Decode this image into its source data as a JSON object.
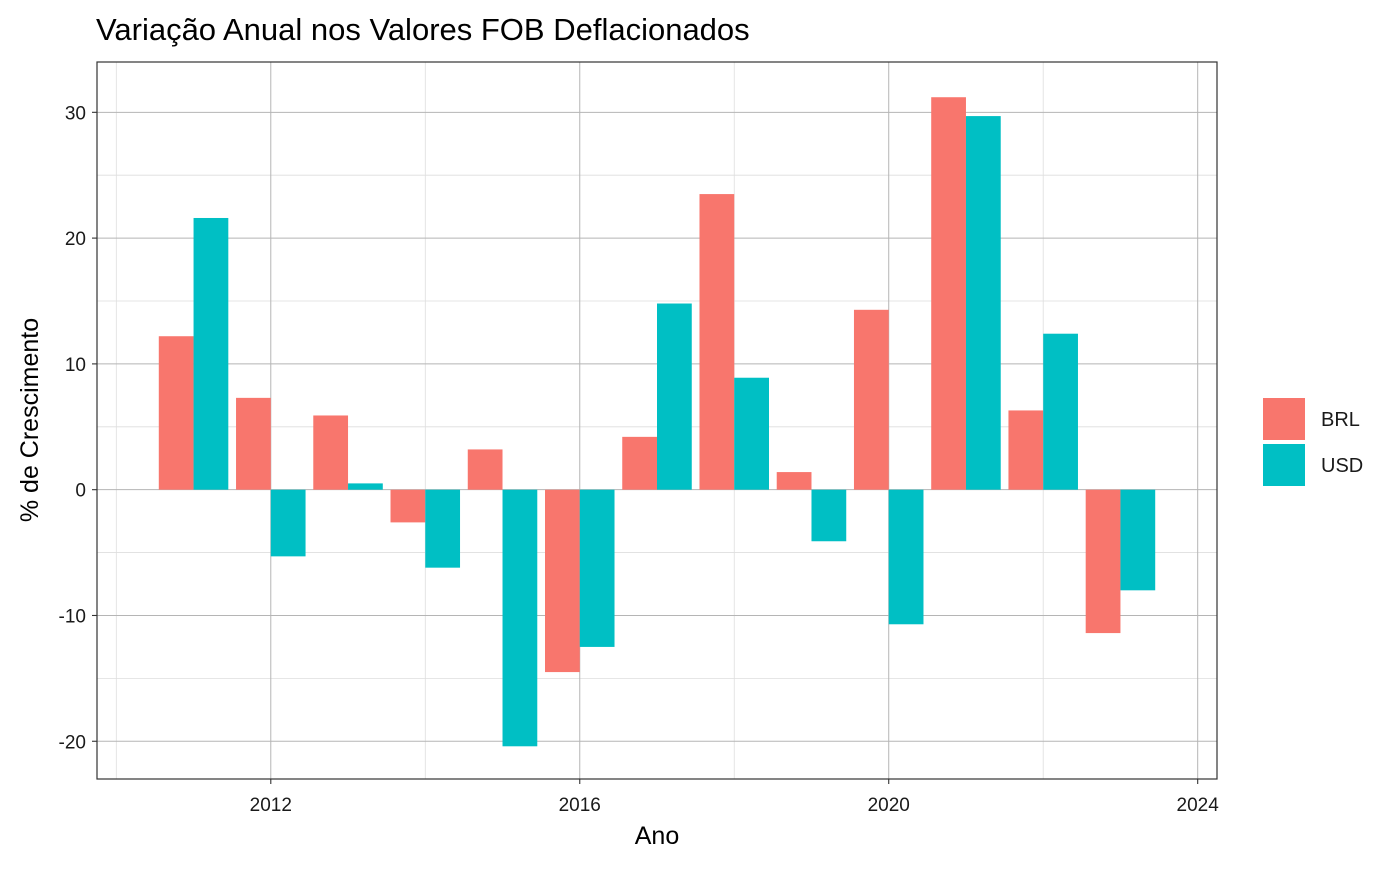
{
  "chart_data": {
    "type": "bar",
    "title": "Variação Anual nos Valores FOB Deflacionados",
    "xlabel": "Ano",
    "ylabel": "% de Crescimento",
    "xlim": [
      2009.75,
      2024.25
    ],
    "ylim": [
      -23,
      34
    ],
    "x_ticks": [
      2012,
      2016,
      2020,
      2024
    ],
    "x_tick_labels": [
      "2012",
      "2016",
      "2020",
      "2024"
    ],
    "y_ticks": [
      -20,
      -10,
      0,
      10,
      20,
      30
    ],
    "y_tick_labels": [
      "-20",
      "-10",
      "0",
      "10",
      "20",
      "30"
    ],
    "grid": true,
    "legend_position": "right",
    "categories": [
      2011,
      2012,
      2013,
      2014,
      2015,
      2016,
      2017,
      2018,
      2019,
      2020,
      2021,
      2022,
      2023
    ],
    "series": [
      {
        "name": "BRL",
        "color": "#F8766D",
        "values": [
          12.2,
          7.3,
          5.9,
          -2.6,
          3.2,
          -14.5,
          4.2,
          23.5,
          1.4,
          14.3,
          31.2,
          6.3,
          -11.4
        ]
      },
      {
        "name": "USD",
        "color": "#00BFC4",
        "values": [
          21.6,
          -5.3,
          0.5,
          -6.2,
          -20.4,
          -12.5,
          14.8,
          8.9,
          -4.1,
          -10.7,
          29.7,
          12.4,
          -8.0
        ]
      }
    ]
  }
}
